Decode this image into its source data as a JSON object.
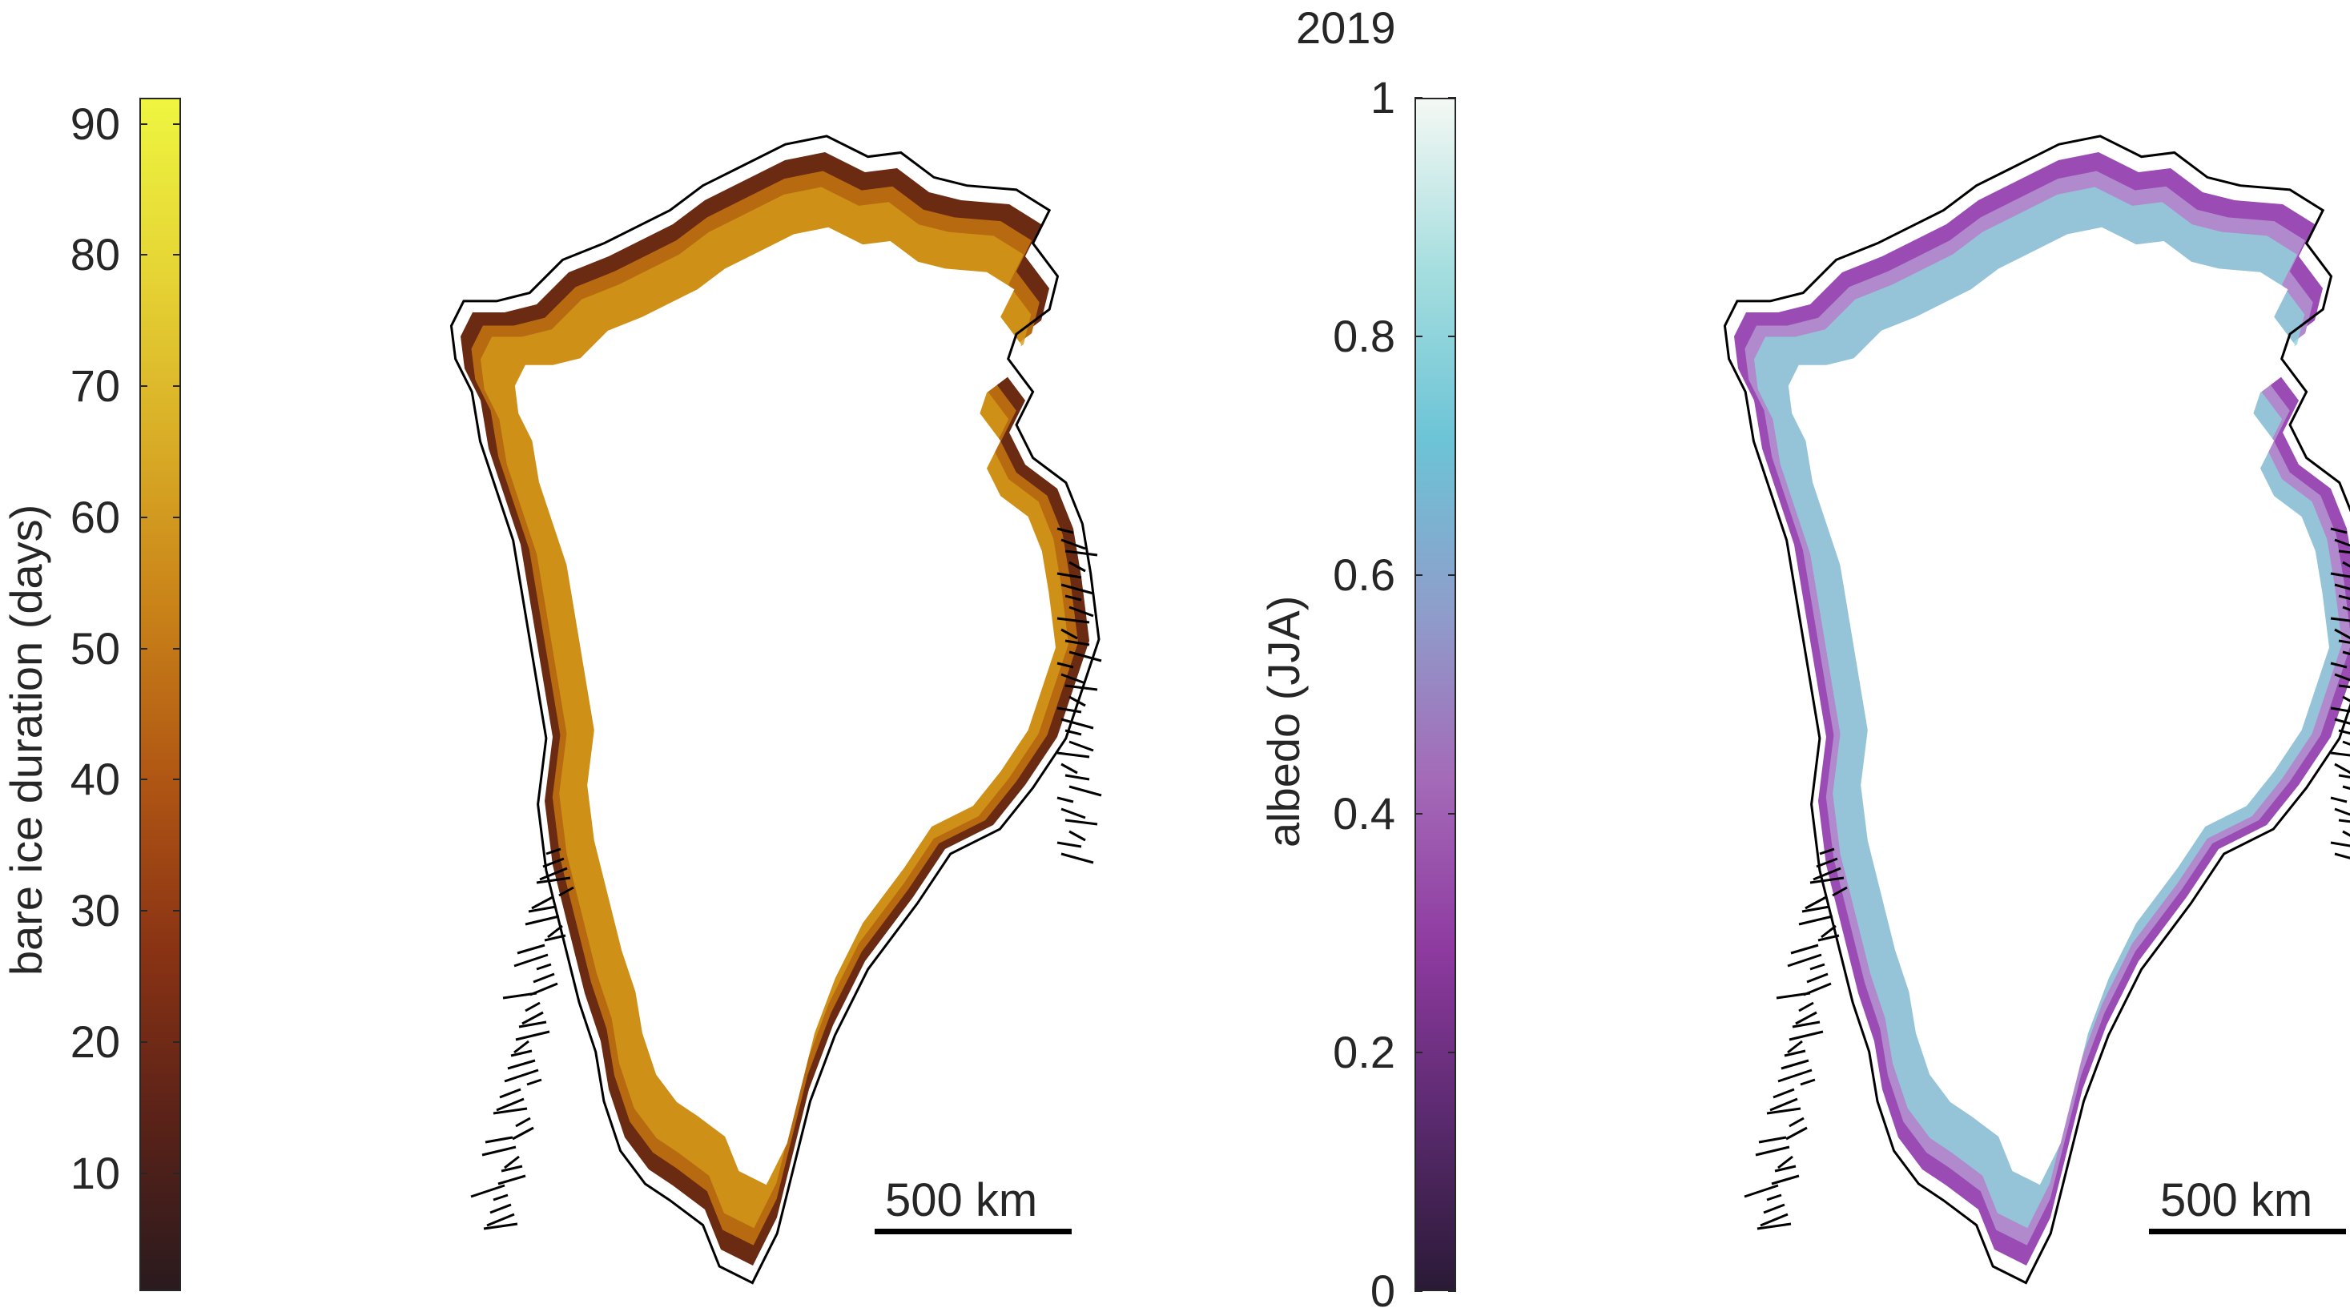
{
  "figure": {
    "title": "2019",
    "left_panel": {
      "colorbar": {
        "label": "bare ice duration (days)",
        "range": [
          1,
          92
        ],
        "ticks": [
          "10",
          "20",
          "30",
          "40",
          "50",
          "60",
          "70",
          "80",
          "90"
        ],
        "tick_values": [
          10,
          20,
          30,
          40,
          50,
          60,
          70,
          80,
          90
        ],
        "colormap": [
          "#2a1a1e",
          "#5a2218",
          "#8a3314",
          "#b05614",
          "#c98218",
          "#d9ad26",
          "#e6d535",
          "#eef540"
        ]
      },
      "scale_bar": {
        "label": "500 km"
      },
      "map_colors": {
        "ice_fill": "#ffffff",
        "coast": "#000000",
        "margin": [
          "#6b2a12",
          "#b86a10",
          "#d49a1a"
        ]
      }
    },
    "right_panel": {
      "colorbar": {
        "label": "albedo (JJA)",
        "range": [
          0,
          1
        ],
        "ticks": [
          "0",
          "0.2",
          "0.4",
          "0.6",
          "0.8",
          "1"
        ],
        "tick_values": [
          0,
          0.2,
          0.4,
          0.6,
          0.8,
          1
        ],
        "colormap": [
          "#2a1a36",
          "#5a2a6e",
          "#8e3aa0",
          "#a46ab8",
          "#8e9ecb",
          "#6cc4d6",
          "#a6dedf",
          "#f4f8f4"
        ]
      },
      "scale_bar": {
        "label": "500 km"
      },
      "map_colors": {
        "ice_fill": "#ffffff",
        "coast": "#000000",
        "margin": [
          "#9a4cb4",
          "#b08acc",
          "#8fd2dc"
        ]
      }
    }
  }
}
